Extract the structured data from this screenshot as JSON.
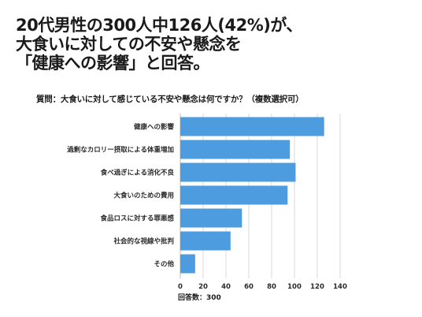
{
  "headline": {
    "line1": "20代男性の300人中126人(42%)が、",
    "line2": "大食いに対しての不安や懸念を",
    "line3": "「健康への影響」と回答。"
  },
  "question": "質問：大食いに対して感じている不安や懸念は何ですか？（複数選択可）",
  "footnote": "回答数：300",
  "colors": {
    "bar": "#4d9ce0",
    "text": "#1a1a1a",
    "grid": "#d9d9d9"
  },
  "chart_data": {
    "type": "bar",
    "orientation": "horizontal",
    "categories": [
      "健康への影響",
      "過剰なカロリー摂取による体重増加",
      "食べ過ぎによる消化不良",
      "大食いのための費用",
      "食品ロスに対する罪悪感",
      "社会的な視線や批判",
      "その他"
    ],
    "values": [
      126,
      96,
      101,
      94,
      54,
      44,
      13
    ],
    "xlim": [
      0,
      140
    ],
    "xticks": [
      "0",
      "20",
      "40",
      "60",
      "80",
      "100",
      "120",
      "140"
    ],
    "grid": true
  }
}
